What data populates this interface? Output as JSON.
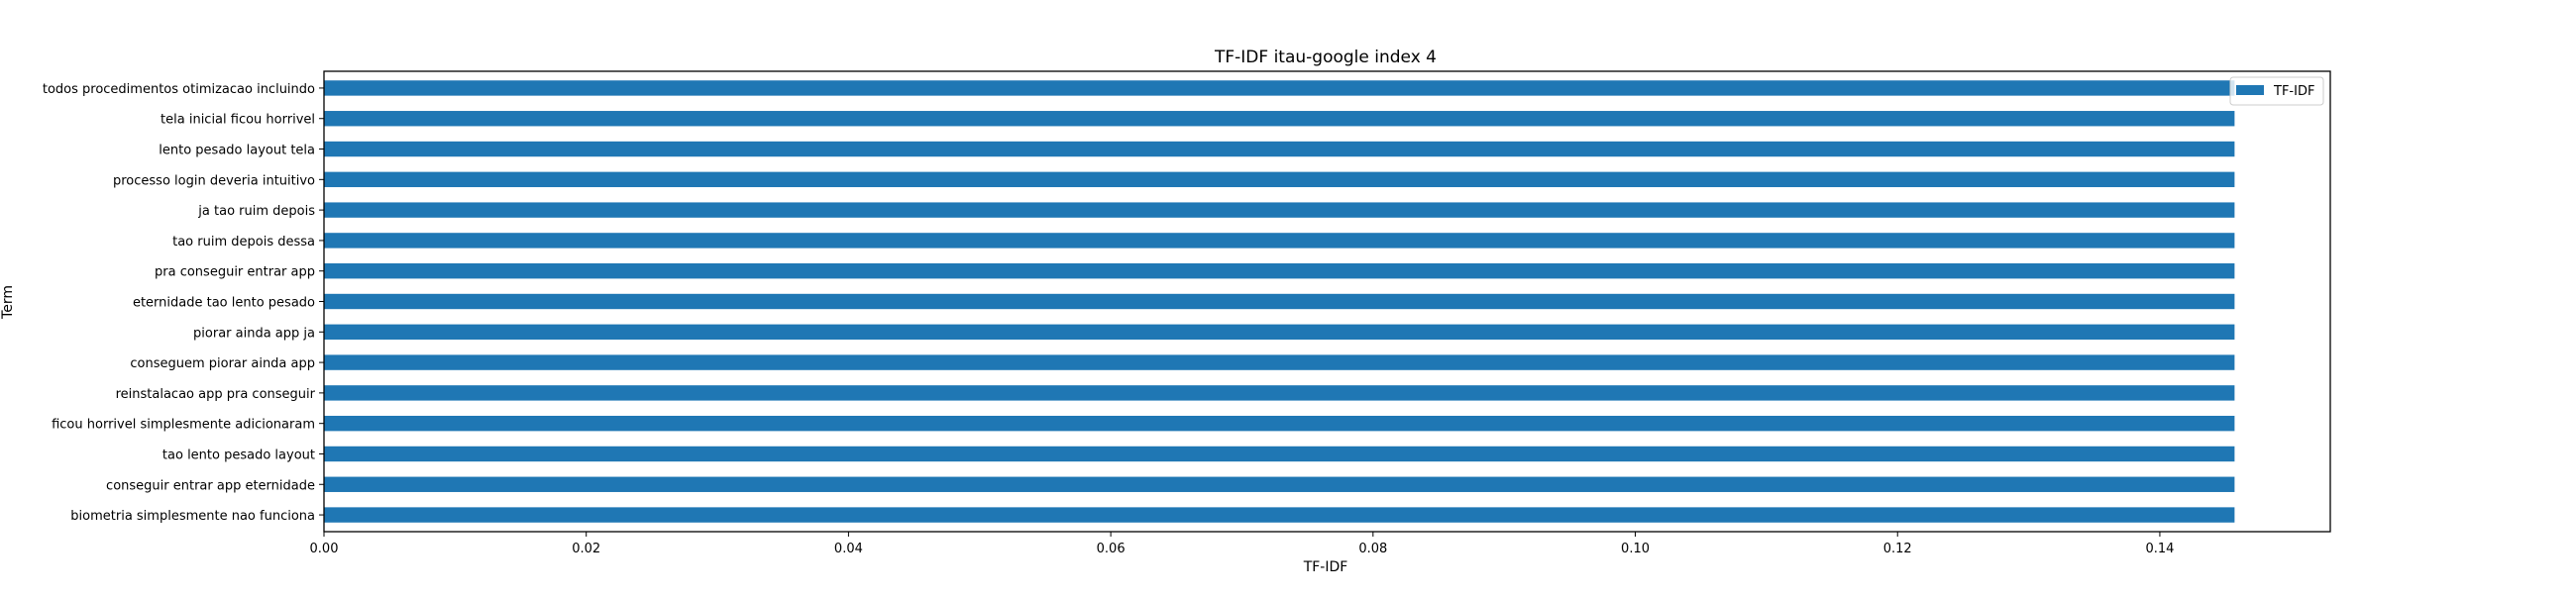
{
  "chart_data": {
    "type": "bar",
    "orientation": "horizontal",
    "title": "TF-IDF itau-google index 4",
    "xlabel": "TF-IDF",
    "ylabel": "Term",
    "xlim": [
      0.0,
      0.153
    ],
    "xticks": [
      0.0,
      0.02,
      0.04,
      0.06,
      0.08,
      0.1,
      0.12,
      0.14
    ],
    "xtick_labels": [
      "0.00",
      "0.02",
      "0.04",
      "0.06",
      "0.08",
      "0.10",
      "0.12",
      "0.14"
    ],
    "grid": false,
    "legend_position": "top-right",
    "series": [
      {
        "name": "TF-IDF",
        "color": "#1f77b4",
        "values": [
          0.1457,
          0.1457,
          0.1457,
          0.1457,
          0.1457,
          0.1457,
          0.1457,
          0.1457,
          0.1457,
          0.1457,
          0.1457,
          0.1457,
          0.1457,
          0.1457,
          0.1457
        ]
      }
    ],
    "categories": [
      "todos procedimentos otimizacao incluindo",
      "tela inicial ficou horrivel",
      "lento pesado layout tela",
      "processo login deveria intuitivo",
      "ja tao ruim depois",
      "tao ruim depois dessa",
      "pra conseguir entrar app",
      "eternidade tao lento pesado",
      "piorar ainda app ja",
      "conseguem piorar ainda app",
      "reinstalacao app pra conseguir",
      "ficou horrivel simplesmente adicionaram",
      "tao lento pesado layout",
      "conseguir entrar app eternidade",
      "biometria simplesmente nao funciona"
    ]
  }
}
